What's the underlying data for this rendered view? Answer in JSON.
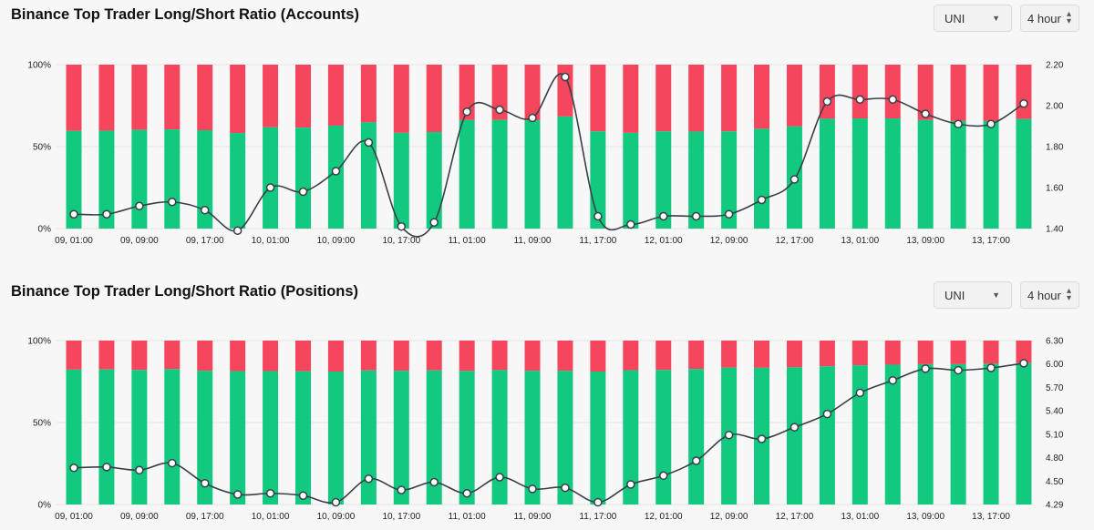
{
  "page": {
    "panels": [
      {
        "title": "Binance Top Trader Long/Short Ratio (Accounts)",
        "symbol_select": "UNI",
        "period_select": "4 hour"
      },
      {
        "title": "Binance Top Trader Long/Short Ratio (Positions)",
        "symbol_select": "UNI",
        "period_select": "4 hour"
      }
    ]
  },
  "chart_data": [
    {
      "type": "bar",
      "title": "Binance Top Trader Long/Short Ratio (Accounts)",
      "colors": {
        "long": "#11c97f",
        "short": "#f6465d",
        "ratio_line": "#3a3f47"
      },
      "x_tick_labels": [
        "09, 01:00",
        "09, 09:00",
        "09, 17:00",
        "10, 01:00",
        "10, 09:00",
        "10, 17:00",
        "11, 01:00",
        "11, 09:00",
        "11, 17:00",
        "12, 01:00",
        "12, 09:00",
        "12, 17:00",
        "13, 01:00",
        "13, 09:00",
        "13, 17:00"
      ],
      "left_axis": {
        "ticks": [
          "0%",
          "50%",
          "100%"
        ],
        "range": [
          0,
          100
        ]
      },
      "right_axis": {
        "ticks": [
          "1.40",
          "1.60",
          "1.80",
          "2.00",
          "2.20"
        ],
        "range": [
          1.4,
          2.2
        ]
      },
      "series": [
        {
          "name": "long",
          "values": [
            59.6,
            59.7,
            60.2,
            60.5,
            60.0,
            58.3,
            61.8,
            61.6,
            62.8,
            64.8,
            58.4,
            58.9,
            66.2,
            66.3,
            66.0,
            68.4,
            59.3,
            58.4,
            59.3,
            59.2,
            59.3,
            60.9,
            62.3,
            67.0,
            67.2,
            67.2,
            66.2,
            65.6,
            65.6,
            66.8
          ]
        },
        {
          "name": "ratio",
          "values": [
            1.47,
            1.47,
            1.51,
            1.53,
            1.49,
            1.39,
            1.6,
            1.58,
            1.68,
            1.82,
            1.41,
            1.43,
            1.97,
            1.98,
            1.94,
            2.14,
            1.46,
            1.42,
            1.46,
            1.46,
            1.47,
            1.54,
            1.64,
            2.02,
            2.03,
            2.03,
            1.96,
            1.91,
            1.91,
            2.01
          ]
        }
      ]
    },
    {
      "type": "bar",
      "title": "Binance Top Trader Long/Short Ratio (Positions)",
      "colors": {
        "long": "#11c97f",
        "short": "#f6465d",
        "ratio_line": "#3a3f47"
      },
      "x_tick_labels": [
        "09, 01:00",
        "09, 09:00",
        "09, 17:00",
        "10, 01:00",
        "10, 09:00",
        "10, 17:00",
        "11, 01:00",
        "11, 09:00",
        "11, 17:00",
        "12, 01:00",
        "12, 09:00",
        "12, 17:00",
        "13, 01:00",
        "13, 09:00",
        "13, 17:00"
      ],
      "left_axis": {
        "ticks": [
          "0%",
          "50%",
          "100%"
        ],
        "range": [
          0,
          100
        ]
      },
      "right_axis": {
        "ticks": [
          "4.29",
          "4.50",
          "4.80",
          "5.10",
          "5.40",
          "5.70",
          "6.00",
          "6.30"
        ],
        "range": [
          4.29,
          6.3
        ]
      },
      "series": [
        {
          "name": "long",
          "values": [
            82.3,
            82.4,
            82.1,
            82.6,
            81.6,
            81.4,
            81.4,
            81.3,
            81.1,
            81.8,
            81.6,
            81.8,
            81.5,
            82.0,
            81.6,
            81.6,
            81.1,
            81.9,
            82.1,
            82.7,
            83.5,
            83.4,
            83.7,
            84.3,
            84.9,
            85.3,
            85.6,
            85.6,
            85.9,
            86.3
          ]
        },
        {
          "name": "ratio",
          "values": [
            4.67,
            4.68,
            4.64,
            4.73,
            4.48,
            4.38,
            4.39,
            4.37,
            4.31,
            4.53,
            4.42,
            4.49,
            4.39,
            4.55,
            4.43,
            4.44,
            4.31,
            4.47,
            4.57,
            4.76,
            5.09,
            5.04,
            5.19,
            5.36,
            5.63,
            5.79,
            5.94,
            5.92,
            5.95,
            6.01
          ]
        }
      ]
    }
  ]
}
